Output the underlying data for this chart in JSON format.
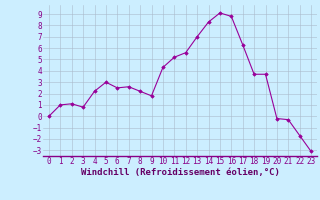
{
  "x": [
    0,
    1,
    2,
    3,
    4,
    5,
    6,
    7,
    8,
    9,
    10,
    11,
    12,
    13,
    14,
    15,
    16,
    17,
    18,
    19,
    20,
    21,
    22,
    23
  ],
  "y": [
    0.0,
    1.0,
    1.1,
    0.8,
    2.2,
    3.0,
    2.5,
    2.6,
    2.2,
    1.8,
    4.3,
    5.2,
    5.6,
    7.0,
    8.3,
    9.1,
    8.8,
    6.3,
    3.7,
    3.7,
    -0.2,
    -0.3,
    -1.7,
    -3.1
  ],
  "line_color": "#990099",
  "marker": "D",
  "marker_size": 1.8,
  "bg_color": "#cceeff",
  "grid_color": "#aabbcc",
  "xlabel": "Windchill (Refroidissement éolien,°C)",
  "xlabel_color": "#660066",
  "xlabel_fontsize": 6.5,
  "tick_color": "#880088",
  "tick_fontsize": 5.5,
  "ylim": [
    -3.5,
    9.8
  ],
  "xlim": [
    -0.5,
    23.5
  ],
  "yticks": [
    -3,
    -2,
    -1,
    0,
    1,
    2,
    3,
    4,
    5,
    6,
    7,
    8,
    9
  ],
  "xticks": [
    0,
    1,
    2,
    3,
    4,
    5,
    6,
    7,
    8,
    9,
    10,
    11,
    12,
    13,
    14,
    15,
    16,
    17,
    18,
    19,
    20,
    21,
    22,
    23
  ]
}
